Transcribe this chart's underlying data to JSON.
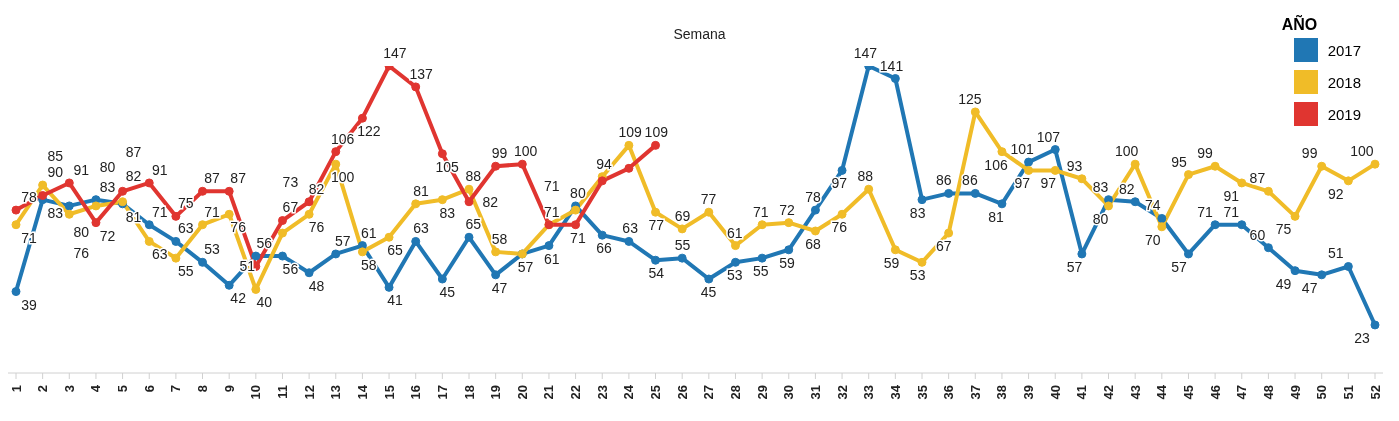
{
  "chart_data": {
    "type": "line",
    "xlabel": "Semana",
    "legend_title": "AÑO",
    "legend": "top right",
    "marker": "circle",
    "grid": false,
    "categories": [
      "1",
      "2",
      "3",
      "4",
      "5",
      "6",
      "7",
      "8",
      "9",
      "10",
      "11",
      "12",
      "13",
      "14",
      "15",
      "16",
      "17",
      "18",
      "19",
      "20",
      "21",
      "22",
      "23",
      "24",
      "25",
      "26",
      "27",
      "28",
      "29",
      "30",
      "31",
      "32",
      "33",
      "34",
      "35",
      "36",
      "37",
      "38",
      "39",
      "40",
      "41",
      "42",
      "43",
      "44",
      "45",
      "46",
      "47",
      "48",
      "49",
      "50",
      "51",
      "52"
    ],
    "series": [
      {
        "name": "2017",
        "color": "#2077b4",
        "values": [
          39,
          83,
          80,
          83,
          81,
          71,
          63,
          53,
          42,
          56,
          56,
          48,
          57,
          61,
          41,
          63,
          45,
          65,
          47,
          57,
          61,
          80,
          66,
          63,
          54,
          55,
          45,
          53,
          55,
          59,
          78,
          97,
          147,
          141,
          83,
          86,
          86,
          81,
          101,
          107,
          57,
          83,
          82,
          74,
          57,
          71,
          71,
          60,
          49,
          47,
          51,
          23
        ],
        "value_labels": [
          "39",
          "83",
          "80",
          "83",
          "81",
          "71",
          "63",
          "53",
          "42",
          "56",
          "56",
          "48",
          "57",
          "61",
          "41",
          "63",
          "45",
          "65",
          "47",
          null,
          "61",
          "80",
          "66",
          "63",
          "54",
          "55",
          "45",
          "53",
          "55",
          "59",
          "78",
          "97",
          "147",
          "141",
          "83",
          "86",
          "86",
          "81",
          "101",
          "107",
          "57",
          "83",
          "82",
          "74",
          "57",
          "71",
          "71",
          "60",
          "49",
          "47",
          "51",
          "23"
        ]
      },
      {
        "name": "2018",
        "color": "#f0bc28",
        "values": [
          71,
          90,
          76,
          80,
          82,
          63,
          55,
          71,
          76,
          40,
          67,
          76,
          100,
          58,
          65,
          81,
          83,
          88,
          58,
          57,
          71,
          78,
          94,
          109,
          77,
          69,
          77,
          61,
          71,
          72,
          68,
          76,
          88,
          59,
          53,
          67,
          125,
          106,
          97,
          97,
          93,
          80,
          100,
          70,
          95,
          99,
          91,
          87,
          75,
          99,
          92,
          100
        ],
        "value_labels": [
          "71",
          "90",
          "76",
          "80",
          "82",
          "63",
          "55",
          "71",
          "76",
          "40",
          "67",
          "76",
          "100",
          "58",
          "65",
          "81",
          "83",
          "88",
          "58",
          "57",
          "71",
          null,
          "94",
          "109",
          "77",
          "69",
          "77",
          "61",
          "71",
          "72",
          "68",
          "76",
          "88",
          "59",
          "53",
          "67",
          "125",
          "106",
          "97",
          "97",
          "93",
          "80",
          "100",
          "70",
          "95",
          "99",
          "91",
          "87",
          "75",
          "99",
          "92",
          "100"
        ]
      },
      {
        "name": "2019",
        "color": "#e03530",
        "values": [
          78,
          85,
          91,
          72,
          87,
          91,
          75,
          87,
          87,
          51,
          73,
          82,
          106,
          122,
          147,
          137,
          105,
          82,
          99,
          100,
          71,
          71,
          92,
          98,
          109,
          null,
          null,
          null,
          null,
          null,
          null,
          null,
          null,
          null,
          null,
          null,
          null,
          null,
          null,
          null,
          null,
          null,
          null,
          null,
          null,
          null,
          null,
          null,
          null,
          null,
          null,
          null
        ],
        "value_labels": [
          "78",
          "85",
          "91",
          "72",
          "87",
          "91",
          "75",
          "87",
          "87",
          "51",
          "73",
          "82",
          "106",
          "122",
          "147",
          "137",
          "105",
          "82",
          "99",
          "100",
          "71",
          "71",
          null,
          null,
          "109",
          null,
          null,
          null,
          null,
          null,
          null,
          null,
          null,
          null,
          null,
          null,
          null,
          null,
          null,
          null,
          null,
          null,
          null,
          null,
          null,
          null,
          null,
          null,
          null,
          null,
          null,
          null
        ]
      }
    ]
  }
}
